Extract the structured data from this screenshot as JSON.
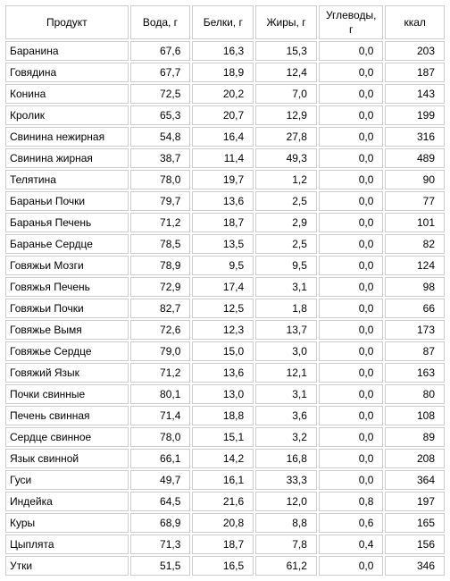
{
  "table": {
    "columns": [
      "Продукт",
      "Вода, г",
      "Белки, г",
      "Жиры, г",
      "Углеводы, г",
      "ккал"
    ],
    "rows": [
      [
        "Баранина",
        "67,6",
        "16,3",
        "15,3",
        "0,0",
        "203"
      ],
      [
        "Говядина",
        "67,7",
        "18,9",
        "12,4",
        "0,0",
        "187"
      ],
      [
        "Конина",
        "72,5",
        "20,2",
        "7,0",
        "0,0",
        "143"
      ],
      [
        "Кролик",
        "65,3",
        "20,7",
        "12,9",
        "0,0",
        "199"
      ],
      [
        "Свинина нежирная",
        "54,8",
        "16,4",
        "27,8",
        "0,0",
        "316"
      ],
      [
        "Свинина жирная",
        "38,7",
        "11,4",
        "49,3",
        "0,0",
        "489"
      ],
      [
        "Телятина",
        "78,0",
        "19,7",
        "1,2",
        "0,0",
        "90"
      ],
      [
        "Бараньи Почки",
        "79,7",
        "13,6",
        "2,5",
        "0,0",
        "77"
      ],
      [
        "Баранья Печень",
        "71,2",
        "18,7",
        "2,9",
        "0,0",
        "101"
      ],
      [
        "Баранье Сердце",
        "78,5",
        "13,5",
        "2,5",
        "0,0",
        "82"
      ],
      [
        "Говяжьи Мозги",
        "78,9",
        "9,5",
        "9,5",
        "0,0",
        "124"
      ],
      [
        "Говяжья Печень",
        "72,9",
        "17,4",
        "3,1",
        "0,0",
        "98"
      ],
      [
        "Говяжьи Почки",
        "82,7",
        "12,5",
        "1,8",
        "0,0",
        "66"
      ],
      [
        "Говяжье Вымя",
        "72,6",
        "12,3",
        "13,7",
        "0,0",
        "173"
      ],
      [
        "Говяжье Сердце",
        "79,0",
        "15,0",
        "3,0",
        "0,0",
        "87"
      ],
      [
        "Говяжий Язык",
        "71,2",
        "13,6",
        "12,1",
        "0,0",
        "163"
      ],
      [
        "Почки свинные",
        "80,1",
        "13,0",
        "3,1",
        "0,0",
        "80"
      ],
      [
        "Печень свинная",
        "71,4",
        "18,8",
        "3,6",
        "0,0",
        "108"
      ],
      [
        "Сердце свинное",
        "78,0",
        "15,1",
        "3,2",
        "0,0",
        "89"
      ],
      [
        "Язык свинной",
        "66,1",
        "14,2",
        "16,8",
        "0,0",
        "208"
      ],
      [
        "Гуси",
        "49,7",
        "16,1",
        "33,3",
        "0,0",
        "364"
      ],
      [
        "Индейка",
        "64,5",
        "21,6",
        "12,0",
        "0,8",
        "197"
      ],
      [
        "Куры",
        "68,9",
        "20,8",
        "8,8",
        "0,6",
        "165"
      ],
      [
        "Цыплята",
        "71,3",
        "18,7",
        "7,8",
        "0,4",
        "156"
      ],
      [
        "Утки",
        "51,5",
        "16,5",
        "61,2",
        "0,0",
        "346"
      ]
    ]
  }
}
